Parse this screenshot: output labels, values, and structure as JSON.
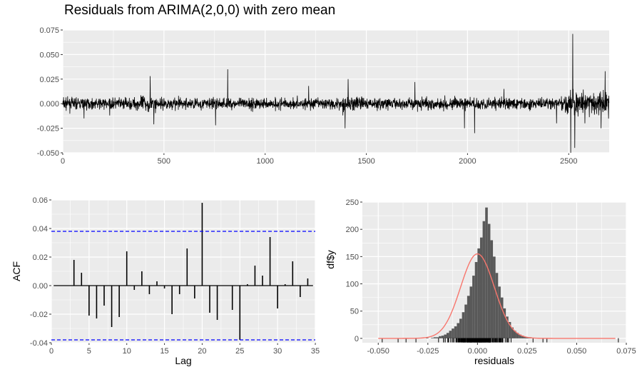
{
  "colors": {
    "panel_bg": "#ebebeb",
    "grid": "#ffffff",
    "line": "#000000",
    "axis_text": "#4d4d4d",
    "ci_line": "#0000ff",
    "density": "#f8766d",
    "hist_fill": "#595959"
  },
  "chart_data": [
    {
      "type": "line",
      "title": "Residuals from ARIMA(2,0,0) with zero mean",
      "xlabel": "",
      "ylabel": "",
      "xlim": [
        0,
        2700
      ],
      "ylim": [
        -0.05,
        0.075
      ],
      "xticks": [
        "0",
        "500",
        "1000",
        "1500",
        "2000",
        "2500"
      ],
      "yticks": [
        "-0.050",
        "-0.025",
        "0.000",
        "0.025",
        "0.050",
        "0.075"
      ],
      "n": 2700,
      "spikes": [
        {
          "x": 432,
          "y": 0.028
        },
        {
          "x": 450,
          "y": -0.021
        },
        {
          "x": 815,
          "y": 0.035
        },
        {
          "x": 755,
          "y": -0.022
        },
        {
          "x": 1410,
          "y": 0.025
        },
        {
          "x": 1395,
          "y": -0.025
        },
        {
          "x": 1985,
          "y": -0.025
        },
        {
          "x": 2035,
          "y": -0.03
        },
        {
          "x": 2440,
          "y": -0.02
        },
        {
          "x": 2520,
          "y": 0.071
        },
        {
          "x": 2510,
          "y": -0.05
        },
        {
          "x": 2530,
          "y": -0.045
        },
        {
          "x": 2680,
          "y": 0.033
        },
        {
          "x": 2660,
          "y": -0.025
        },
        {
          "x": 105,
          "y": -0.015
        },
        {
          "x": 232,
          "y": -0.012
        },
        {
          "x": 1215,
          "y": 0.018
        },
        {
          "x": 1740,
          "y": 0.022
        },
        {
          "x": 2180,
          "y": 0.015
        },
        {
          "x": 2580,
          "y": -0.02
        }
      ],
      "grid": true
    },
    {
      "type": "bar",
      "title": "",
      "xlabel": "Lag",
      "ylabel": "ACF",
      "xlim": [
        0,
        35
      ],
      "ylim": [
        -0.04,
        0.06
      ],
      "xticks": [
        "0",
        "5",
        "10",
        "15",
        "20",
        "25",
        "30",
        "35"
      ],
      "yticks": [
        "-0.04",
        "-0.02",
        "0.00",
        "0.02",
        "0.04",
        "0.06"
      ],
      "lags": [
        1,
        2,
        3,
        4,
        5,
        6,
        7,
        8,
        9,
        10,
        11,
        12,
        13,
        14,
        15,
        16,
        17,
        18,
        19,
        20,
        21,
        22,
        23,
        24,
        25,
        26,
        27,
        28,
        29,
        30,
        31,
        32,
        33,
        34
      ],
      "values": [
        0.0,
        0.0,
        0.018,
        0.009,
        -0.021,
        -0.023,
        -0.014,
        -0.029,
        -0.022,
        0.024,
        -0.003,
        0.01,
        -0.006,
        0.003,
        -0.002,
        -0.02,
        -0.006,
        0.026,
        -0.009,
        0.058,
        -0.019,
        -0.024,
        0.0,
        -0.017,
        -0.038,
        0.001,
        0.014,
        0.007,
        0.034,
        -0.016,
        0.001,
        0.017,
        -0.008,
        0.005
      ],
      "ci": 0.038,
      "grid": true
    },
    {
      "type": "bar",
      "title": "",
      "xlabel": "residuals",
      "ylabel": "df$y",
      "xlim": [
        -0.058,
        0.075
      ],
      "ylim": [
        -8,
        250
      ],
      "xticks": [
        "-0.050",
        "-0.025",
        "0.000",
        "0.025",
        "0.050",
        "0.075"
      ],
      "yticks": [
        "0",
        "50",
        "100",
        "150",
        "200",
        "250"
      ],
      "bin_width": 0.0013,
      "bin_start": -0.026,
      "counts": [
        1,
        0,
        1,
        2,
        2,
        4,
        5,
        7,
        10,
        14,
        18,
        22,
        28,
        36,
        48,
        62,
        78,
        95,
        115,
        140,
        165,
        185,
        215,
        240,
        210,
        180,
        150,
        120,
        95,
        75,
        55,
        40,
        30,
        20,
        14,
        10,
        7,
        5,
        3,
        2,
        2,
        1,
        1
      ],
      "density_peak": 155,
      "density_sd": 0.0085,
      "grid": true
    }
  ]
}
